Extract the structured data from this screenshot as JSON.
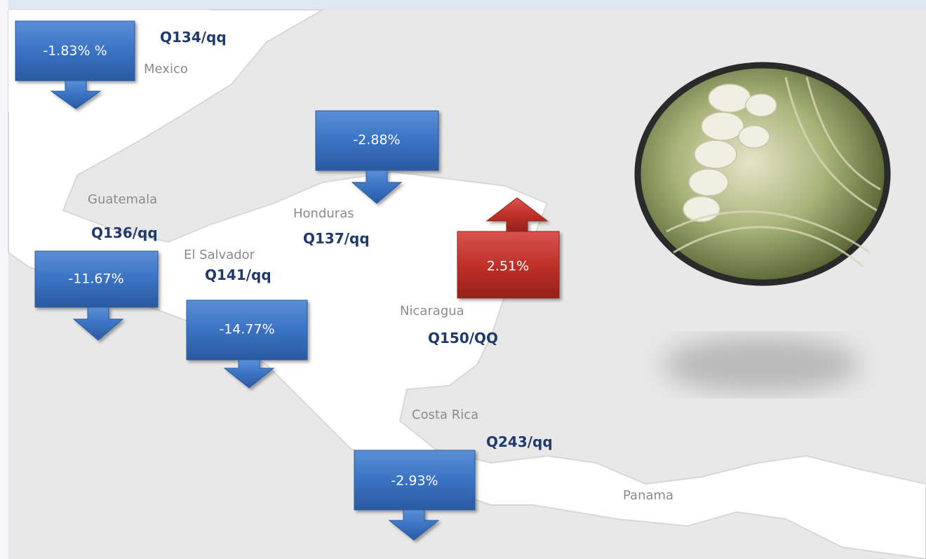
{
  "regions": [
    {
      "name": "Mexico",
      "price": "Q134/qq",
      "change": "-1.83% %"
    },
    {
      "name": "Guatemala",
      "price": "Q136/qq",
      "change": "-11.67%"
    },
    {
      "name": "El Salvador",
      "price": "Q141/qq",
      "change": "-14.77%"
    },
    {
      "name": "Honduras",
      "price": "Q137/qq",
      "change": "-2.88%"
    },
    {
      "name": "Nicaragua",
      "price": "Q150/QQ",
      "change": "2.51%"
    },
    {
      "name": "Costa Rica",
      "price": "Q243/qq",
      "change": "-2.93%"
    },
    {
      "name": "Panama"
    }
  ]
}
